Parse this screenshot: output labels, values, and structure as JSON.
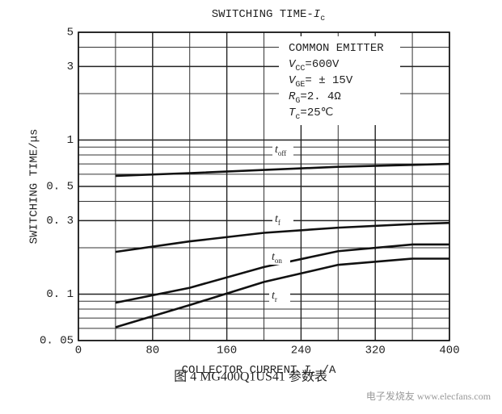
{
  "chart_data": {
    "type": "line",
    "title": [
      {
        "text": "SWITCHING TIME-"
      },
      {
        "text": "I",
        "italic": true
      },
      {
        "text": "c",
        "sub": true
      }
    ],
    "x_label": [
      {
        "text": "COLLECTOR CURRENT "
      },
      {
        "text": "I",
        "italic": true
      },
      {
        "text": "c",
        "sub": true
      },
      {
        "text": " /A"
      }
    ],
    "y_label": "SWITCHING TIME/μs",
    "annotations": [
      [
        {
          "text": "COMMON EMITTER"
        }
      ],
      [
        {
          "text": "V",
          "italic": true
        },
        {
          "text": "CC",
          "sub": true
        },
        {
          "text": "=600V"
        }
      ],
      [
        {
          "text": "V",
          "italic": true
        },
        {
          "text": "GE",
          "sub": true
        },
        {
          "text": "= ± 15V"
        }
      ],
      [
        {
          "text": "R",
          "italic": true
        },
        {
          "text": "G",
          "sub": true
        },
        {
          "text": "=2. 4Ω"
        }
      ],
      [
        {
          "text": "T",
          "italic": true
        },
        {
          "text": "c",
          "sub": true
        },
        {
          "text": "=25℃"
        }
      ]
    ],
    "caption": "图 4 MG400Q1US41 参数表",
    "watermark": "电子发烧友 www.elecfans.com",
    "x": [
      40,
      120,
      200,
      280,
      360,
      400
    ],
    "series": [
      {
        "name": "t",
        "name_sub": "off",
        "color": "#111111",
        "values": [
          0.585,
          0.61,
          0.64,
          0.67,
          0.69,
          0.7
        ]
      },
      {
        "name": "t",
        "name_sub": "f",
        "color": "#111111",
        "values": [
          0.188,
          0.22,
          0.25,
          0.27,
          0.285,
          0.29
        ]
      },
      {
        "name": "t",
        "name_sub": "on",
        "color": "#111111",
        "values": [
          0.088,
          0.11,
          0.15,
          0.19,
          0.21,
          0.21
        ]
      },
      {
        "name": "t",
        "name_sub": "r",
        "color": "#111111",
        "values": [
          0.061,
          0.085,
          0.12,
          0.155,
          0.17,
          0.17
        ]
      }
    ],
    "xlim": [
      0,
      400
    ],
    "xticks": [
      0,
      80,
      160,
      240,
      320,
      400
    ],
    "xminor": [
      40,
      120,
      200,
      280,
      360
    ],
    "ylim": [
      0.05,
      5
    ],
    "log_y": true,
    "yticks": [
      {
        "value": 0.05,
        "label": "0. 05"
      },
      {
        "value": 0.1,
        "label": "0. 1"
      },
      {
        "value": 0.3,
        "label": "0. 3"
      },
      {
        "value": 0.5,
        "label": "0. 5"
      },
      1,
      3,
      5
    ],
    "yminor": [
      0.06,
      0.07,
      0.08,
      0.09,
      0.2,
      0.4,
      0.6,
      0.7,
      0.8,
      0.9,
      2,
      4
    ],
    "grid": true
  }
}
